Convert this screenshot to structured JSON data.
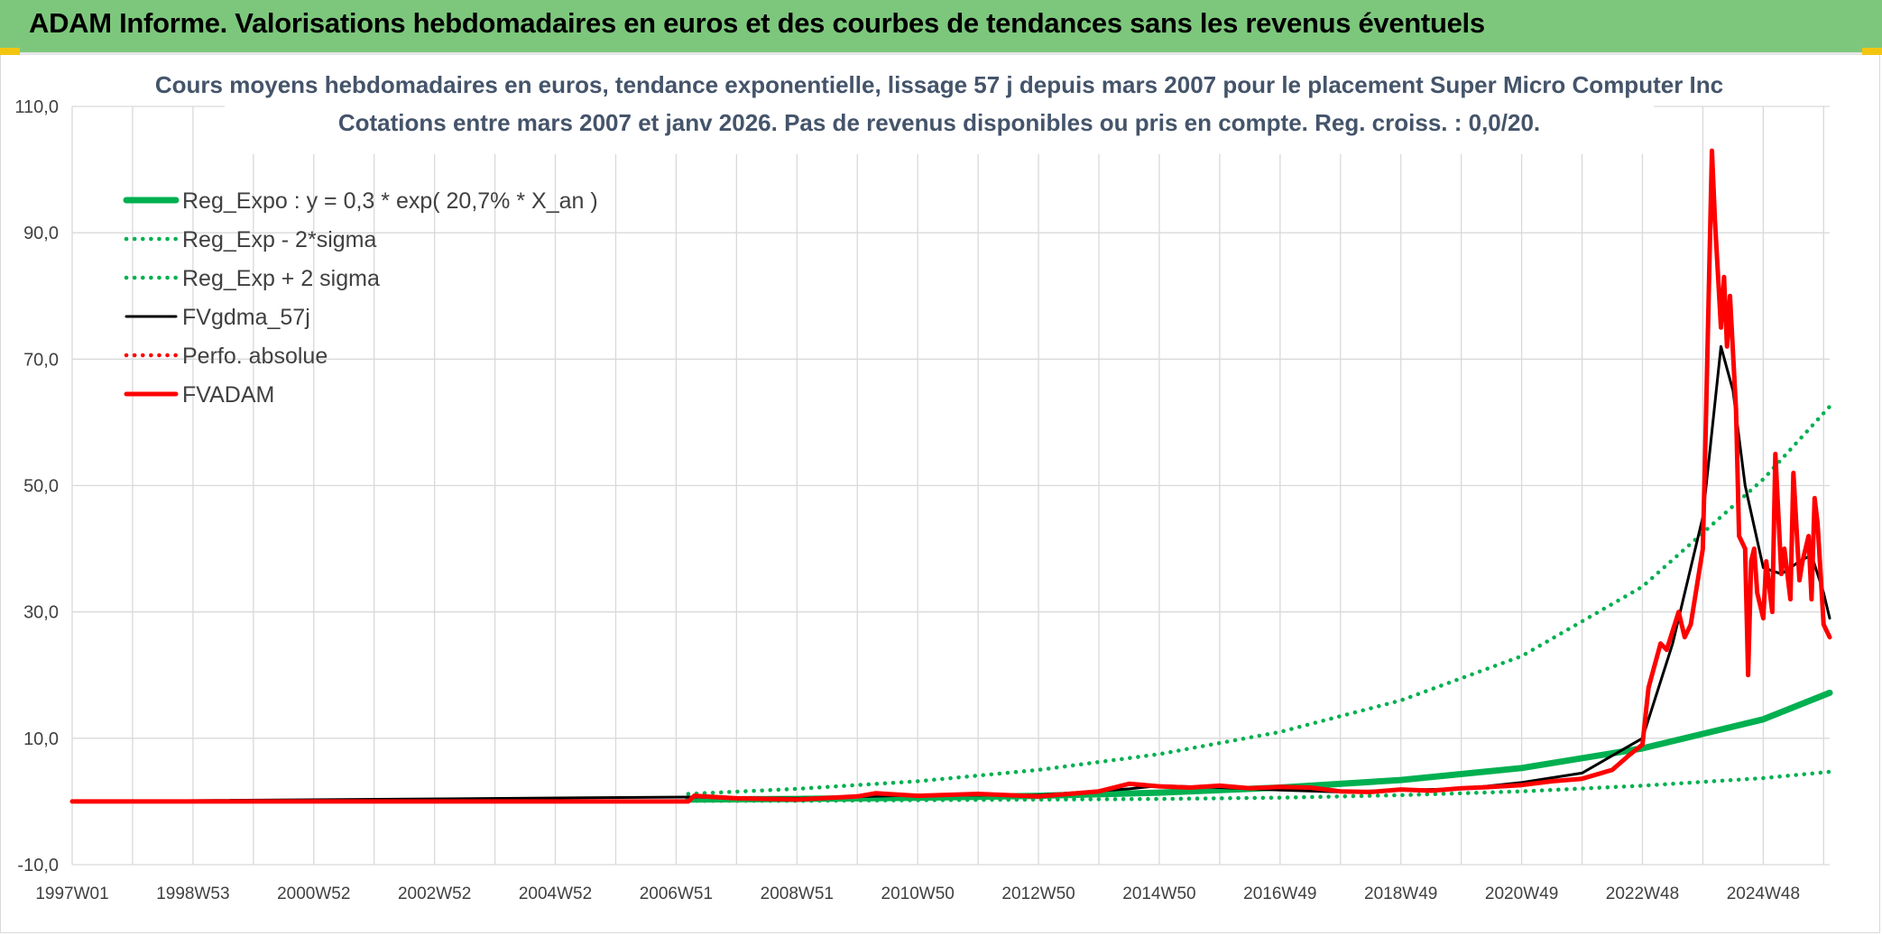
{
  "header": {
    "title": "ADAM Informe. Valorisations hebdomadaires en euros et des courbes de tendances sans les revenus éventuels"
  },
  "colors": {
    "banner": "#7dc77d",
    "reg_expo": "#00b050",
    "fvgdma": "#000000",
    "fvadam": "#ff0000",
    "perfo": "#ff0000"
  },
  "chart_data": {
    "type": "line",
    "title": "Cours moyens hebdomadaires en euros, tendance exponentielle, lissage 57 j depuis mars 2007 pour le placement Super Micro Computer Inc",
    "subtitle": "Cotations entre mars 2007 et janv 2026. Pas de revenus disponibles ou pris en compte. Reg. croiss. : 0,0/20.",
    "ylim": [
      -10,
      110
    ],
    "yticks": [
      "110,0",
      "90,0",
      "70,0",
      "50,0",
      "30,0",
      "10,0",
      "-10,0"
    ],
    "xlim": [
      1997.0,
      2026.1
    ],
    "xticks": [
      {
        "label": "1997W01",
        "x": 1997.0
      },
      {
        "label": "1998W53",
        "x": 1999.0
      },
      {
        "label": "2000W52",
        "x": 2001.0
      },
      {
        "label": "2002W52",
        "x": 2003.0
      },
      {
        "label": "2004W52",
        "x": 2005.0
      },
      {
        "label": "2006W51",
        "x": 2007.0
      },
      {
        "label": "2008W51",
        "x": 2009.0
      },
      {
        "label": "2010W50",
        "x": 2011.0
      },
      {
        "label": "2012W50",
        "x": 2013.0
      },
      {
        "label": "2014W50",
        "x": 2015.0
      },
      {
        "label": "2016W49",
        "x": 2017.0
      },
      {
        "label": "2018W49",
        "x": 2019.0
      },
      {
        "label": "2020W49",
        "x": 2021.0
      },
      {
        "label": "2022W48",
        "x": 2023.0
      },
      {
        "label": "2024W48",
        "x": 2025.0
      }
    ],
    "grid": true,
    "legend_position": "top-left",
    "series": [
      {
        "name": "Reg_Expo : y = 0,3 * exp( 20,7% *  X_an )",
        "style": "solid-thick",
        "color": "#00b050",
        "x": [
          2007.2,
          2009,
          2011,
          2013,
          2015,
          2017,
          2019,
          2021,
          2023,
          2025,
          2026.1
        ],
        "y": [
          0.3,
          0.4,
          0.6,
          0.9,
          1.4,
          2.2,
          3.4,
          5.3,
          8.4,
          13.0,
          17.2
        ]
      },
      {
        "name": "Reg_Exp - 2*sigma",
        "style": "dotted",
        "color": "#00b050",
        "x": [
          2007.2,
          2009,
          2011,
          2013,
          2015,
          2017,
          2019,
          2021,
          2023,
          2025,
          2026.1
        ],
        "y": [
          0.1,
          0.1,
          0.2,
          0.3,
          0.4,
          0.6,
          1.0,
          1.6,
          2.5,
          3.7,
          4.7
        ]
      },
      {
        "name": "Reg_Exp + 2 sigma",
        "style": "dotted",
        "color": "#00b050",
        "x": [
          2007.2,
          2009,
          2011,
          2013,
          2015,
          2017,
          2019,
          2021,
          2023,
          2025,
          2026.1
        ],
        "y": [
          1.2,
          2.0,
          3.2,
          5.0,
          7.5,
          11.0,
          16.0,
          23.0,
          34.0,
          51.0,
          62.5
        ]
      },
      {
        "name": "FVgdma_57j",
        "style": "solid-thin",
        "color": "#000000",
        "x": [
          1997.0,
          2007.2,
          2009,
          2011,
          2013,
          2014.5,
          2015,
          2016,
          2017,
          2018,
          2019,
          2020,
          2021,
          2022,
          2023,
          2023.5,
          2024.0,
          2024.3,
          2024.5,
          2024.7,
          2025.0,
          2025.3,
          2025.6,
          2025.8,
          2026.0,
          2026.1
        ],
        "y": [
          0.0,
          0.7,
          0.5,
          1.0,
          1.0,
          2.0,
          2.5,
          2.2,
          1.8,
          1.5,
          1.8,
          2.0,
          3.0,
          4.5,
          10.0,
          25.0,
          45.0,
          72.0,
          65.0,
          50.0,
          37.0,
          36.0,
          38.0,
          39.0,
          33.0,
          29.0
        ]
      },
      {
        "name": "Perfo. absolue",
        "style": "dotted",
        "color": "#ff0000",
        "x": [],
        "y": []
      },
      {
        "name": "FVADAM",
        "style": "solid-thick",
        "color": "#ff0000",
        "x": [
          1997.0,
          2007.2,
          2007.3,
          2008,
          2009,
          2010,
          2010.3,
          2011,
          2012,
          2013,
          2014,
          2014.5,
          2015.0,
          2015.5,
          2016.0,
          2016.5,
          2017.0,
          2017.5,
          2018.0,
          2018.5,
          2019.0,
          2019.5,
          2020.0,
          2020.5,
          2021.0,
          2021.5,
          2022.0,
          2022.5,
          2022.8,
          2023.0,
          2023.1,
          2023.3,
          2023.4,
          2023.6,
          2023.7,
          2023.8,
          2024.0,
          2024.05,
          2024.15,
          2024.2,
          2024.3,
          2024.35,
          2024.4,
          2024.45,
          2024.55,
          2024.6,
          2024.7,
          2024.75,
          2024.8,
          2024.85,
          2024.9,
          2025.0,
          2025.05,
          2025.15,
          2025.2,
          2025.3,
          2025.35,
          2025.45,
          2025.5,
          2025.6,
          2025.65,
          2025.75,
          2025.8,
          2025.85,
          2025.9,
          2026.0,
          2026.1
        ],
        "y": [
          0.0,
          0.0,
          0.9,
          0.5,
          0.3,
          0.8,
          1.3,
          0.9,
          1.2,
          0.8,
          1.6,
          2.8,
          2.4,
          2.2,
          2.5,
          2.1,
          2.3,
          2.2,
          1.6,
          1.5,
          1.9,
          1.7,
          2.1,
          2.3,
          2.6,
          3.2,
          3.6,
          5.0,
          7.5,
          9.0,
          18.0,
          25.0,
          24.0,
          30.0,
          26.0,
          28.0,
          40.0,
          60.0,
          103.0,
          92.0,
          75.0,
          83.0,
          72.0,
          80.0,
          62.0,
          42.0,
          40.0,
          20.0,
          38.0,
          40.0,
          33.0,
          29.0,
          38.0,
          30.0,
          55.0,
          36.0,
          40.0,
          32.0,
          52.0,
          35.0,
          38.0,
          42.0,
          32.0,
          48.0,
          44.0,
          28.0,
          26.0
        ]
      }
    ]
  }
}
